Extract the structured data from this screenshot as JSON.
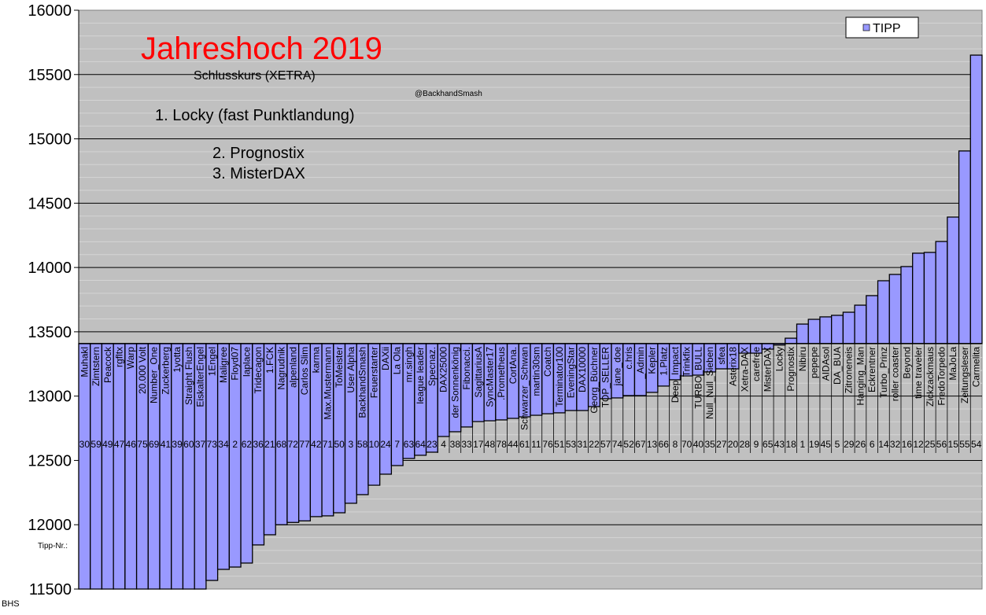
{
  "chart_data": {
    "type": "bar",
    "title": "Jahreshoch 2019",
    "subtitle": "Schlusskurs (XETRA)",
    "credit": "@BackhandSmash",
    "ranking": [
      "1. Locky (fast Punktlandung)",
      "2. Prognostix",
      "3. MisterDAX"
    ],
    "row_label": "Tipp-Nr.:",
    "footer": "BHS",
    "legend": {
      "label": "TIPP",
      "position": "top-right"
    },
    "ylim": [
      11500,
      16000
    ],
    "yticks": [
      11500,
      12000,
      12500,
      13000,
      13500,
      14000,
      14500,
      15000,
      15500,
      16000
    ],
    "minor_grid_step": 100,
    "axis_crossing": 13408,
    "grid": true,
    "colors": {
      "bar": "#9999ff",
      "plot_bg": "#c0c0c0",
      "minor_grid": "#d4d4d4",
      "title": "#ff0000"
    },
    "categories": [
      "Muhakl",
      "Zimtstern",
      "Peacock",
      "rgfltx",
      "Warp",
      "20.000 Volt",
      "Number_One",
      "Zuckerberg",
      "1yotta",
      "Straight Flush",
      "EiskalterEngel",
      "1Engel",
      "Maligree",
      "Floyd07",
      "laplace",
      "Tridecagon",
      "1.FCK",
      "Nagrudnik",
      "alpenland",
      "Carlos Slim",
      "karma",
      "Max.Mustermann",
      "ToMeister",
      "User Alpha",
      "BackhandSmash",
      "Feuerstarter",
      "DAXii",
      "La Ola",
      "mr.singh",
      "league leader",
      "Specnaz.",
      "DAX25000",
      "der Sonnenkönig",
      "Fibonacci.",
      "SagittariusA",
      "SyncMaster17",
      ".Prometheus",
      "CortAna.",
      "Schwarzer_Schwan",
      "martin30sm",
      "Coatch",
      "Terminator100",
      "EveningStar",
      "DAX10000",
      "Georg_Büchner",
      "TOP_SELLER",
      "jane_doe",
      "c.hris",
      "_Admin",
      "Kepler",
      "1.Platz",
      "Deep_Impact",
      "Trinkfix",
      "TURBO_BULL",
      "Null_Null_Sieben",
      "sfea",
      "Asterix18",
      "Xetra-DAX",
      "carefree",
      "MisterDAX",
      "Locky",
      "Prognostix",
      "Nibiru",
      "pepepe",
      "AIDAsol",
      "DA_BUA",
      "Zitroneneis",
      "Hanging_Man",
      "Eckrentner",
      "Turbo_Prinz",
      "roller coaster",
      "Beyond",
      "time traveler",
      "Zickzackmaus",
      "FredoTorpedo",
      "MaJoLa",
      "Zeitungsleser",
      "Carmelita"
    ],
    "tipp_nr": [
      "30",
      "59",
      "49",
      "47",
      "46",
      "75",
      "69",
      "41",
      "39",
      "60",
      "37",
      "73",
      "34",
      "2",
      "62",
      "36",
      "21",
      "68",
      "72",
      "77",
      "42",
      "71",
      "50",
      "3",
      "58",
      "10",
      "24",
      "7",
      "63",
      "64",
      "23",
      "4",
      "38",
      "33",
      "17",
      "48",
      "78",
      "44",
      "61",
      "11",
      "76",
      "51",
      "53",
      "31",
      "22",
      "57",
      "74",
      "52",
      "67",
      "13",
      "66",
      "8",
      "70",
      "40",
      "35",
      "27",
      "20",
      "28",
      "9",
      "65",
      "43",
      "18",
      "1",
      "19",
      "45",
      "5",
      "29",
      "26",
      "6",
      "14",
      "32",
      "16",
      "12",
      "25",
      "56",
      "15",
      "55",
      "54"
    ],
    "series": [
      {
        "name": "TIPP",
        "values": [
          11500,
          11500,
          11500,
          11500,
          11500,
          11500,
          11500,
          11500,
          11500,
          11500,
          11500,
          11567,
          11653,
          11671,
          11702,
          11843,
          11922,
          12000,
          12018,
          12030,
          12063,
          12069,
          12093,
          12167,
          12234,
          12307,
          12393,
          12460,
          12515,
          12540,
          12564,
          12686,
          12723,
          12760,
          12802,
          12808,
          12815,
          12827,
          12839,
          12851,
          12863,
          12870,
          12888,
          12888,
          12919,
          12980,
          12986,
          13004,
          13004,
          13029,
          13078,
          13127,
          13157,
          13163,
          13188,
          13212,
          13212,
          13334,
          13334,
          13365,
          13397,
          13450,
          13560,
          13597,
          13616,
          13628,
          13652,
          13707,
          13781,
          13897,
          13946,
          14007,
          14111,
          14117,
          14202,
          14392,
          14906,
          15651
        ]
      }
    ]
  }
}
